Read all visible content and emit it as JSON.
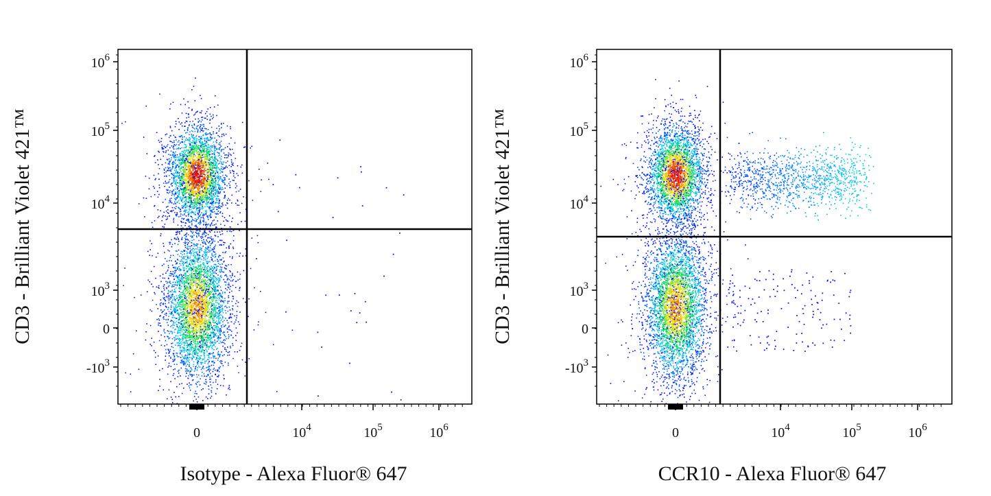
{
  "chart_data": [
    {
      "type": "scatter",
      "xlabel": "Isotype - Alexa Fluor® 647",
      "ylabel": "CD3 - Brilliant Violet 421™",
      "x_scale": "biexponential (log with linear region near 0)",
      "y_scale": "biexponential (log with linear region near 0)",
      "x_ticks": [
        "0",
        "10^4",
        "10^5",
        "10^6"
      ],
      "y_ticks": [
        "10^6",
        "10^5",
        "10^4",
        "10^3",
        "0",
        "-10^3"
      ],
      "quadrant_gate": {
        "x": 1800,
        "y": 4500
      },
      "populations": [
        {
          "name_hint": "CD3+ CCR10- cluster",
          "x_center": 0,
          "y_center": 25000,
          "density": "high"
        },
        {
          "name_hint": "CD3- CCR10- cluster",
          "x_center": 0,
          "y_center": 600,
          "density": "high"
        },
        {
          "name_hint": "sparse events right of gate",
          "x_range": [
            2000,
            300000
          ],
          "density": "very low"
        }
      ],
      "colormap": "density: blue-cyan-green-yellow-red",
      "grid": false,
      "legend": "none"
    },
    {
      "type": "scatter",
      "xlabel": "CCR10 - Alexa Fluor® 647",
      "ylabel": "CD3 - Brilliant Violet 421™",
      "x_scale": "biexponential (log with linear region near 0)",
      "y_scale": "biexponential (log with linear region near 0)",
      "x_ticks": [
        "0",
        "10^4",
        "10^5",
        "10^6"
      ],
      "y_ticks": [
        "10^6",
        "10^5",
        "10^4",
        "10^3",
        "0",
        "-10^3"
      ],
      "quadrant_gate": {
        "x": 1800,
        "y": 4000
      },
      "populations": [
        {
          "name_hint": "CD3+ CCR10- cluster",
          "x_center": 0,
          "y_center": 25000,
          "density": "high"
        },
        {
          "name_hint": "CD3+ CCR10+ population",
          "x_range": [
            2000,
            60000
          ],
          "y_center": 20000,
          "density": "medium"
        },
        {
          "name_hint": "CD3- CCR10- cluster",
          "x_center": 0,
          "y_center": 600,
          "density": "high"
        },
        {
          "name_hint": "CD3- CCR10+ sparse",
          "x_range": [
            2000,
            80000
          ],
          "y_center": 300,
          "density": "low"
        }
      ],
      "colormap": "density: blue-cyan-green-yellow-red",
      "grid": false,
      "legend": "none"
    }
  ]
}
